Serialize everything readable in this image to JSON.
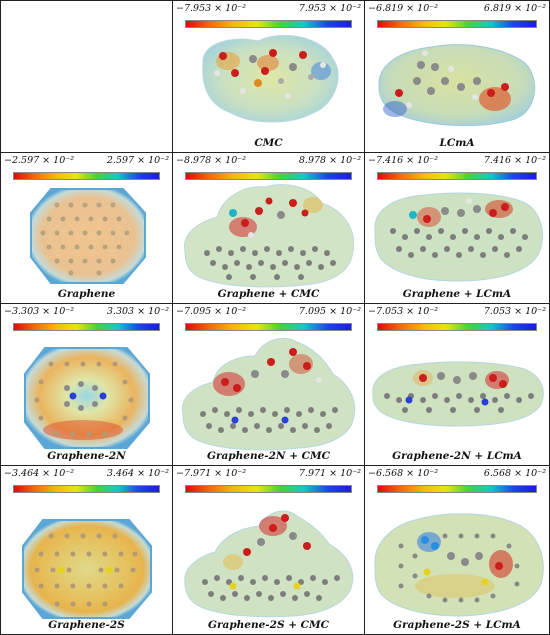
{
  "figure": {
    "rows": [
      {
        "cells": [
          {
            "range_low": "",
            "range_high": "",
            "caption": "",
            "empty": true
          },
          {
            "range_low": "−7.953 × 10⁻²",
            "range_high": "7.953 × 10⁻²",
            "caption": "CMC"
          },
          {
            "range_low": "−6.819 × 10⁻²",
            "range_high": "6.819 × 10⁻²",
            "caption": "LCmA"
          }
        ]
      },
      {
        "cells": [
          {
            "range_low": "−2.597 × 10⁻²",
            "range_high": "2.597 × 10⁻²",
            "caption": "Graphene"
          },
          {
            "range_low": "−8.978 × 10⁻²",
            "range_high": "8.978 × 10⁻²",
            "caption": "Graphene + CMC"
          },
          {
            "range_low": "−7.416 × 10⁻²",
            "range_high": "7.416 × 10⁻²",
            "caption": "Graphene + LCmA"
          }
        ]
      },
      {
        "cells": [
          {
            "range_low": "−3.303 × 10⁻²",
            "range_high": "3.303 × 10⁻²",
            "caption": "Graphene-2N"
          },
          {
            "range_low": "−7.095 × 10⁻²",
            "range_high": "7.095 × 10⁻²",
            "caption": "Graphene-2N + CMC"
          },
          {
            "range_low": "−7.053 × 10⁻²",
            "range_high": "7.053 × 10⁻²",
            "caption": "Graphene-2N + LCmA"
          }
        ]
      },
      {
        "cells": [
          {
            "range_low": "−3.464 × 10⁻²",
            "range_high": "3.464 × 10⁻²",
            "caption": "Graphene-2S"
          },
          {
            "range_low": "−7.971 × 10⁻²",
            "range_high": "7.971 × 10⁻²",
            "caption": "Graphene-2S + CMC"
          },
          {
            "range_low": "−6.568 × 10⁻²",
            "range_high": "6.568 × 10⁻²",
            "caption": "Graphene-2S + LCmA"
          }
        ]
      }
    ],
    "scale_colors": [
      "#e10a0a",
      "#f4b80c",
      "#e6e60e",
      "#46d23a",
      "#13c8c8",
      "#1c46e6"
    ]
  }
}
